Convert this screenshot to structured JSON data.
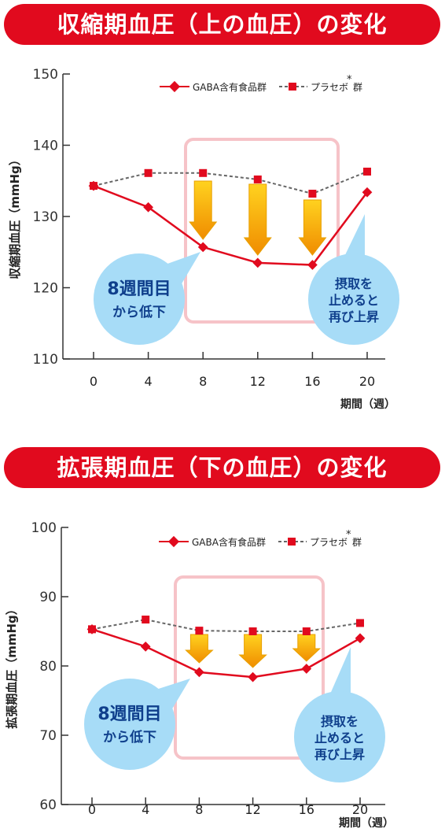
{
  "colors": {
    "banner": "#e10a1e",
    "gaba": "#e10a1e",
    "placebo_line": "#666666",
    "placebo_marker": "#e10a1e",
    "highlight": "#f6c3c8",
    "bubble": "#a7dcf7",
    "arrow_top": "#ffd21f",
    "arrow_bottom": "#f08c00"
  },
  "chart_data": [
    {
      "type": "line",
      "title": "収縮期血圧（上の血圧）の変化",
      "ylabel": "収縮期血圧（mmHg）",
      "xlabel": "期間（週）",
      "x": [
        0,
        4,
        8,
        12,
        16,
        20
      ],
      "xticks": [
        "0",
        "4",
        "8",
        "12",
        "16",
        "20"
      ],
      "yticks": [
        "150",
        "140",
        "130",
        "120",
        "110"
      ],
      "ylim": [
        110,
        150
      ],
      "series": [
        {
          "name": "GABA含有食品群",
          "values": [
            134.3,
            131.3,
            125.7,
            123.5,
            123.2,
            133.4
          ]
        },
        {
          "name": "プラセボ",
          "values": [
            134.3,
            136.1,
            136.1,
            135.2,
            133.2,
            136.3
          ]
        }
      ],
      "legend": {
        "gaba": "GABA含有食品群",
        "placebo": "プラセボ",
        "asterisk": "*",
        "group": "群"
      },
      "annotation_left": {
        "line1": "8週間目",
        "line2": "から低下"
      },
      "annotation_right": {
        "line1": "摂取を",
        "line2": "止めると",
        "line3": "再び上昇"
      }
    },
    {
      "type": "line",
      "title": "拡張期血圧（下の血圧）の変化",
      "ylabel": "拡張期血圧（mmHg）",
      "xlabel": "期間（週）",
      "x": [
        0,
        4,
        8,
        12,
        16,
        20
      ],
      "xticks": [
        "0",
        "4",
        "8",
        "12",
        "16",
        "20"
      ],
      "yticks": [
        "100",
        "90",
        "80",
        "70",
        "60"
      ],
      "ylim": [
        60,
        100
      ],
      "series": [
        {
          "name": "GABA含有食品群",
          "values": [
            85.3,
            82.8,
            79.1,
            78.4,
            79.6,
            84.0
          ]
        },
        {
          "name": "プラセボ",
          "values": [
            85.3,
            86.7,
            85.1,
            85.0,
            85.0,
            86.2
          ]
        }
      ],
      "legend": {
        "gaba": "GABA含有食品群",
        "placebo": "プラセボ",
        "asterisk": "*",
        "group": "群"
      },
      "annotation_left": {
        "line1": "8週間目",
        "line2": "から低下"
      },
      "annotation_right": {
        "line1": "摂取を",
        "line2": "止めると",
        "line3": "再び上昇"
      }
    }
  ]
}
